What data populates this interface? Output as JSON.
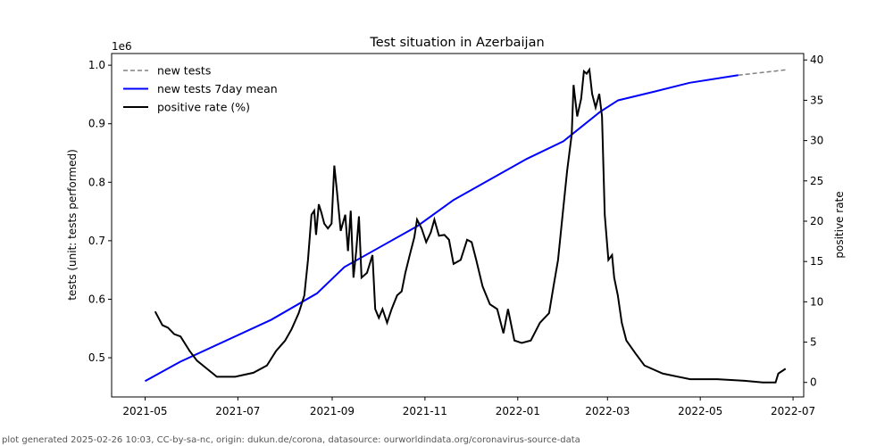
{
  "chart_data": {
    "type": "line",
    "title": "Test situation in Azerbaijan",
    "xlabel": "",
    "ylabel_left": "tests (unit: tests performed)",
    "ylabel_right": "positive rate",
    "left_offset_label": "1e6",
    "x_origin": "2021-05-01",
    "x_unit": "days since x_origin",
    "xlim_days": [
      -22,
      433
    ],
    "ylim_left": [
      0.433,
      1.02
    ],
    "ylim_right": [
      -1.8,
      40.8
    ],
    "x_ticks": [
      {
        "label": "2021-05",
        "day": 0
      },
      {
        "label": "2021-07",
        "day": 61
      },
      {
        "label": "2021-09",
        "day": 123
      },
      {
        "label": "2021-11",
        "day": 184
      },
      {
        "label": "2022-01",
        "day": 245
      },
      {
        "label": "2022-03",
        "day": 304
      },
      {
        "label": "2022-05",
        "day": 365
      },
      {
        "label": "2022-07",
        "day": 426
      }
    ],
    "y_left_ticks": [
      "0.5",
      "0.6",
      "0.7",
      "0.8",
      "0.9",
      "1.0"
    ],
    "y_right_ticks": [
      "0",
      "5",
      "10",
      "15",
      "20",
      "25",
      "30",
      "35",
      "40"
    ],
    "legend_position": "top-left",
    "series": [
      {
        "name": "new tests",
        "axis": "left",
        "color": "#808080",
        "style": "dashed",
        "points": [
          [
            390,
            0.983
          ],
          [
            421,
            0.992
          ]
        ]
      },
      {
        "name": "new tests 7day mean",
        "axis": "left",
        "color": "#0000ff",
        "style": "solid",
        "points": [
          [
            0,
            0.46
          ],
          [
            23,
            0.493
          ],
          [
            83,
            0.565
          ],
          [
            113,
            0.61
          ],
          [
            131,
            0.655
          ],
          [
            155,
            0.69
          ],
          [
            179,
            0.725
          ],
          [
            203,
            0.77
          ],
          [
            227,
            0.805
          ],
          [
            251,
            0.84
          ],
          [
            275,
            0.87
          ],
          [
            299,
            0.92
          ],
          [
            311,
            0.94
          ],
          [
            335,
            0.955
          ],
          [
            358,
            0.97
          ],
          [
            390,
            0.983
          ]
        ]
      },
      {
        "name": "positive rate (%)",
        "axis": "right",
        "color": "#000000",
        "style": "solid",
        "points": [
          [
            6.6,
            8.8
          ],
          [
            11.4,
            7.1
          ],
          [
            15,
            6.8
          ],
          [
            19.1,
            6.0
          ],
          [
            23.3,
            5.7
          ],
          [
            29.3,
            3.9
          ],
          [
            34.1,
            2.7
          ],
          [
            41.3,
            1.6
          ],
          [
            47.2,
            0.7
          ],
          [
            59.2,
            0.7
          ],
          [
            71.2,
            1.2
          ],
          [
            80.1,
            2.1
          ],
          [
            86.1,
            3.9
          ],
          [
            92.1,
            5.2
          ],
          [
            96.3,
            6.6
          ],
          [
            101,
            8.6
          ],
          [
            104.7,
            10.8
          ],
          [
            107.1,
            15.2
          ],
          [
            109.4,
            20.8
          ],
          [
            111.2,
            21.3
          ],
          [
            112.4,
            18.3
          ],
          [
            114.2,
            22.1
          ],
          [
            116,
            21
          ],
          [
            117.8,
            19.7
          ],
          [
            120.2,
            19.1
          ],
          [
            122.6,
            19.7
          ],
          [
            124.4,
            26.9
          ],
          [
            126.2,
            23.6
          ],
          [
            128.6,
            18.8
          ],
          [
            131.6,
            20.8
          ],
          [
            133.4,
            16.3
          ],
          [
            135.2,
            21.3
          ],
          [
            137,
            13
          ],
          [
            138.8,
            16.3
          ],
          [
            140.6,
            20.6
          ],
          [
            142.3,
            13
          ],
          [
            145.9,
            13.6
          ],
          [
            149.5,
            15.8
          ],
          [
            151.3,
            9.1
          ],
          [
            153.7,
            8
          ],
          [
            156.1,
            9.1
          ],
          [
            159.1,
            7.4
          ],
          [
            162.1,
            9.1
          ],
          [
            165.7,
            10.8
          ],
          [
            168.7,
            11.3
          ],
          [
            171.1,
            13.6
          ],
          [
            174,
            15.8
          ],
          [
            177,
            18
          ],
          [
            178.8,
            20.2
          ],
          [
            181.8,
            19.1
          ],
          [
            184.8,
            17.4
          ],
          [
            187.8,
            18.6
          ],
          [
            190.2,
            20.2
          ],
          [
            193.2,
            18.2
          ],
          [
            196.8,
            18.3
          ],
          [
            199.8,
            17.7
          ],
          [
            202.8,
            14.7
          ],
          [
            207.5,
            15.2
          ],
          [
            211.7,
            17.7
          ],
          [
            214.7,
            17.4
          ],
          [
            217.7,
            15.2
          ],
          [
            221.9,
            11.9
          ],
          [
            226.7,
            9.7
          ],
          [
            231.5,
            9.1
          ],
          [
            235.6,
            6.1
          ],
          [
            238.6,
            9.1
          ],
          [
            242.8,
            5.2
          ],
          [
            247.6,
            4.9
          ],
          [
            253.6,
            5.2
          ],
          [
            259.6,
            7.4
          ],
          [
            265.6,
            8.6
          ],
          [
            268.5,
            11.9
          ],
          [
            271.5,
            15.2
          ],
          [
            274.5,
            20.8
          ],
          [
            277.5,
            26.3
          ],
          [
            280.5,
            30.8
          ],
          [
            281.7,
            36.9
          ],
          [
            284.1,
            33
          ],
          [
            286.7,
            35.2
          ],
          [
            288.5,
            38.6
          ],
          [
            290.3,
            38.3
          ],
          [
            292.1,
            38.8
          ],
          [
            293.9,
            35.8
          ],
          [
            296.2,
            34.1
          ],
          [
            298.6,
            35.8
          ],
          [
            300.4,
            33
          ],
          [
            302.2,
            20.8
          ],
          [
            304.6,
            15.2
          ],
          [
            307,
            15.8
          ],
          [
            308.4,
            13
          ],
          [
            310.8,
            10.8
          ],
          [
            313.4,
            7.4
          ],
          [
            316.4,
            5.2
          ],
          [
            322.4,
            3.6
          ],
          [
            328.3,
            2.1
          ],
          [
            340.3,
            1.1
          ],
          [
            358.3,
            0.4
          ],
          [
            376.2,
            0.4
          ],
          [
            394.1,
            0.2
          ],
          [
            406.1,
            0
          ],
          [
            414.5,
            0
          ],
          [
            416.3,
            1.1
          ],
          [
            421.1,
            1.7
          ]
        ]
      }
    ]
  },
  "footer": "plot generated 2025-02-26 10:03, CC-by-sa-nc, origin: dukun.de/corona, datasource: ourworldindata.org/coronavirus-source-data"
}
